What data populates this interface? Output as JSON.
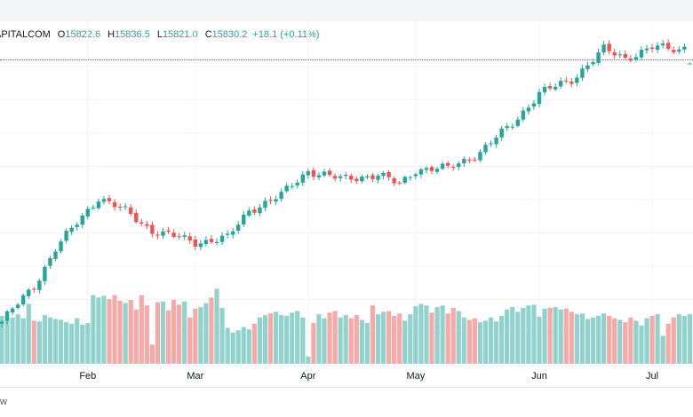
{
  "header": {
    "symbol": "APITALCOM",
    "open_label": "O",
    "open": "15822.6",
    "high_label": "H",
    "high": "15836.5",
    "low_label": "L",
    "low": "15821.0",
    "close_label": "C",
    "close": "15830.2",
    "change": "+18.1 (+0.11%)"
  },
  "footer": {
    "brand_fragment": "w"
  },
  "colors": {
    "up": "#26a69a",
    "down": "#ef5350",
    "up_vol": "#92d2cc",
    "down_vol": "#f7a9a7",
    "grid": "#f0f3fa"
  },
  "chart_data": {
    "type": "candlestick",
    "title": "",
    "xlabel": "",
    "ylabel": "",
    "x_ticks": [
      "Feb",
      "Mar",
      "Apr",
      "May",
      "Jun",
      "Jul"
    ],
    "x_tick_index": [
      16,
      36,
      57,
      77,
      100,
      121
    ],
    "ylim": [
      13150,
      16050
    ],
    "volume_ylim": [
      0,
      100
    ],
    "grid": true,
    "last": {
      "open": 15822.6,
      "high": 15836.5,
      "low": 15821.0,
      "close": 15830.2
    },
    "close_anchors": [
      [
        0,
        13420
      ],
      [
        6,
        13750
      ],
      [
        10,
        14100
      ],
      [
        18,
        14580
      ],
      [
        23,
        14450
      ],
      [
        28,
        14270
      ],
      [
        36,
        14160
      ],
      [
        42,
        14200
      ],
      [
        46,
        14460
      ],
      [
        52,
        14600
      ],
      [
        57,
        14830
      ],
      [
        63,
        14750
      ],
      [
        70,
        14790
      ],
      [
        74,
        14700
      ],
      [
        77,
        14840
      ],
      [
        83,
        14850
      ],
      [
        89,
        15000
      ],
      [
        95,
        15270
      ],
      [
        100,
        15550
      ],
      [
        106,
        15680
      ],
      [
        112,
        15960
      ],
      [
        116,
        15880
      ],
      [
        121,
        15980
      ],
      [
        126,
        15960
      ],
      [
        128,
        16010
      ]
    ],
    "volume_pattern": [
      60,
      55,
      58,
      62,
      57,
      75,
      54,
      53,
      61,
      58,
      56,
      55,
      52,
      50,
      57,
      49,
      51,
      86,
      83,
      85,
      81,
      86,
      79,
      76,
      80,
      68,
      86,
      73,
      24,
      77,
      78,
      67,
      80,
      74,
      78,
      58,
      69,
      71,
      76,
      83,
      94,
      70,
      45,
      39,
      42,
      46,
      43,
      50,
      58,
      61,
      63,
      65,
      61,
      60,
      64,
      66,
      58,
      9,
      51,
      62,
      57,
      64,
      66,
      58,
      61,
      57,
      61,
      55,
      51,
      73,
      62,
      65,
      66,
      60,
      63,
      54,
      62,
      72,
      75,
      73,
      64,
      71,
      73,
      63,
      70,
      66,
      58,
      55,
      57,
      52,
      54,
      58,
      53,
      60,
      68,
      71,
      65,
      70,
      73,
      74,
      59,
      69,
      70,
      71,
      68,
      69,
      65,
      62,
      63,
      56,
      58,
      60,
      63,
      60,
      57,
      55,
      52,
      58,
      54,
      48,
      57,
      60,
      62,
      35,
      50,
      58,
      62,
      60,
      62
    ],
    "notes_on_axis": "price axis labels not visible in screenshot"
  }
}
